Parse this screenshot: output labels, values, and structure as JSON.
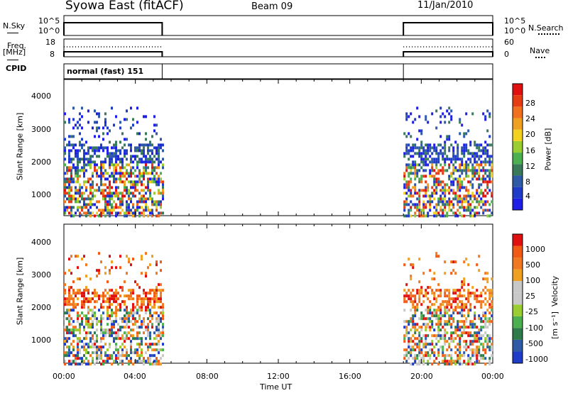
{
  "header": {
    "station": "Syowa East (fitACF)",
    "beam": "Beam 09",
    "date": "11/Jan/2010"
  },
  "left_labels": {
    "nsky": "N.Sky",
    "freq": "Freq.",
    "mhz": "[MHz]",
    "cpid": "CPID"
  },
  "right_labels": {
    "nsearch": "N.Search",
    "nave": "Nave"
  },
  "cpid_text": "normal (fast) 151",
  "noise_ticks_left": [
    "10^5",
    "10^0"
  ],
  "noise_ticks_right": [
    "10^5",
    "10^0"
  ],
  "freq_ticks_left": [
    "18",
    "8"
  ],
  "freq_ticks_right": [
    "60",
    "0"
  ],
  "colors": {
    "power": [
      "#1e1ee6",
      "#1e3cc8",
      "#2f5aa6",
      "#3a7a5a",
      "#4caf50",
      "#9acd32",
      "#f2d21e",
      "#f0a020",
      "#f07020",
      "#e63c14",
      "#e01010"
    ],
    "velocity": [
      "#e01010",
      "#f05a14",
      "#f07820",
      "#f0a020",
      "#c8c8c8",
      "#c8c8c8",
      "#9acd32",
      "#4caf50",
      "#2f7a4a",
      "#2f5aa6",
      "#1e3cc8"
    ]
  },
  "chart_data": [
    {
      "type": "heatmap",
      "panel": "power",
      "xlabel": "",
      "ylabel": "Slant Range [km]",
      "xlim": [
        0,
        24
      ],
      "ylim": [
        200,
        4500
      ],
      "yticks": [
        "4000",
        "3000",
        "2000",
        "1000"
      ],
      "colorbar_label": "Power [dB]",
      "colorbar_ticks": [
        "28",
        "24",
        "20",
        "16",
        "12",
        "8",
        "4"
      ],
      "data_hours": [
        [
          0,
          5.5
        ],
        [
          19,
          24
        ]
      ]
    },
    {
      "type": "heatmap",
      "panel": "velocity",
      "xlabel": "Time UT",
      "ylabel": "Slant Range [km]",
      "xlim": [
        0,
        24
      ],
      "ylim": [
        200,
        4500
      ],
      "yticks": [
        "4000",
        "3000",
        "2000",
        "1000"
      ],
      "xticks": [
        "00:00",
        "04:00",
        "08:00",
        "12:00",
        "16:00",
        "20:00",
        "00:00"
      ],
      "colorbar_label": "Velocity",
      "colorbar_unit": "[m s⁻¹]",
      "colorbar_ticks": [
        "1000",
        "500",
        "100",
        "25",
        "-25",
        "-100",
        "-500",
        "-1000"
      ],
      "data_hours": [
        [
          0,
          5.5
        ],
        [
          19,
          24
        ]
      ]
    }
  ]
}
